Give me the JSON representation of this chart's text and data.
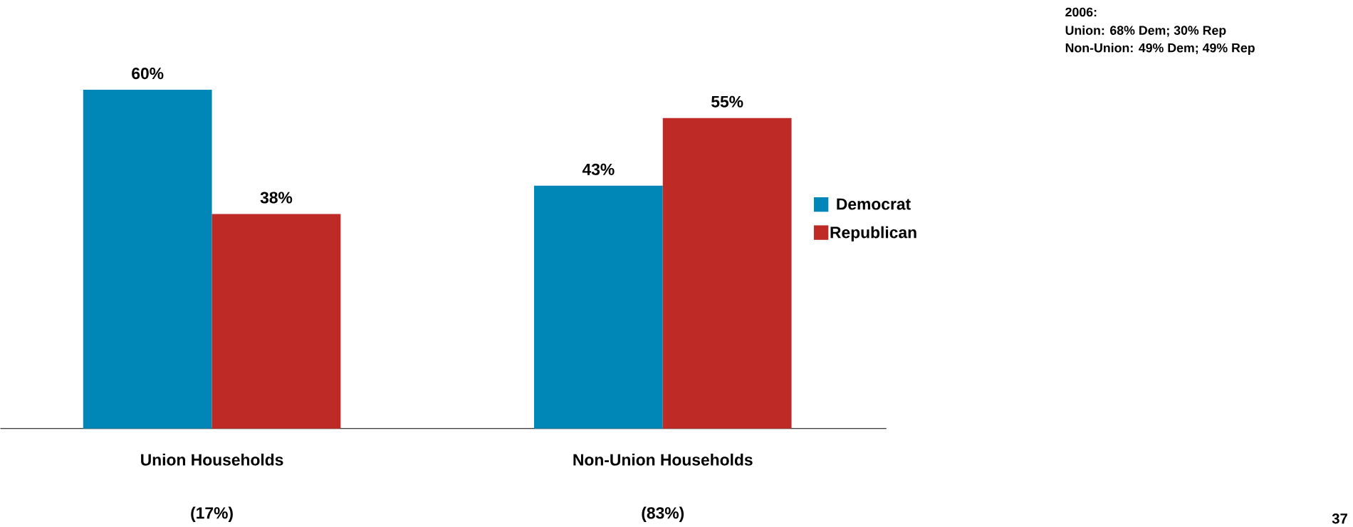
{
  "chart_data": {
    "type": "bar",
    "categories": [
      "Union Households",
      "Non-Union Households"
    ],
    "series": [
      {
        "name": "Democrat",
        "color": "#0087b8",
        "values": [
          60,
          43
        ],
        "value_labels": [
          "60%",
          "43%"
        ]
      },
      {
        "name": "Republican",
        "color": "#be2a26",
        "values": [
          38,
          55
        ],
        "value_labels": [
          "38%",
          "55%"
        ]
      }
    ],
    "legend": "right",
    "annotations": [
      "(17%)",
      "(83%)",
      "2006:",
      "Union:  68% Dem; 30% Rep",
      "Non-Union:  49% Dem; 49% Rep",
      "37"
    ]
  }
}
